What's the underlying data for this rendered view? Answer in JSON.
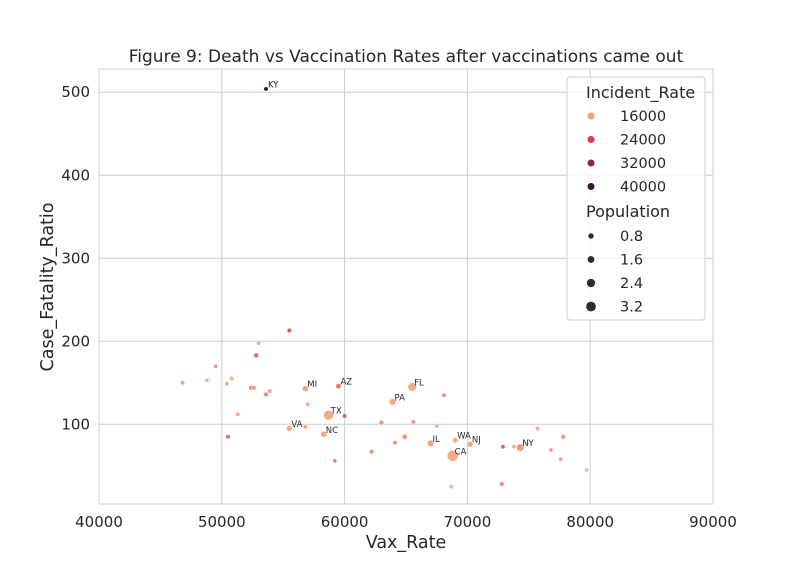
{
  "chart_data": {
    "type": "scatter",
    "title": "Figure 9: Death vs Vaccination Rates after vaccinations came out",
    "xlabel": "Vax_Rate",
    "ylabel": "Case_Fatality_Ratio",
    "xlim": [
      40000,
      90000
    ],
    "ylim": [
      4,
      528
    ],
    "xticks": [
      "40000",
      "50000",
      "60000",
      "70000",
      "80000",
      "90000"
    ],
    "yticks": [
      "100",
      "200",
      "300",
      "400",
      "500"
    ],
    "grid": true,
    "legend_position": "top-right",
    "hue": {
      "title": "Incident_Rate",
      "entries": [
        {
          "label": "16000",
          "value": 16000,
          "color": "#f3a27a"
        },
        {
          "label": "24000",
          "value": 24000,
          "color": "#d93b48"
        },
        {
          "label": "32000",
          "value": 32000,
          "color": "#8f1c5c"
        },
        {
          "label": "40000",
          "value": 40000,
          "color": "#3b0f3b"
        }
      ]
    },
    "size": {
      "title": "Population",
      "entries": [
        {
          "label": "0.8",
          "value": 0.8
        },
        {
          "label": "1.6",
          "value": 1.6
        },
        {
          "label": "2.4",
          "value": 2.4
        },
        {
          "label": "3.2",
          "value": 3.2
        }
      ]
    },
    "points": [
      {
        "x": 53600,
        "y": 504,
        "incident": 40000,
        "pop": 0.4,
        "label": "KY"
      },
      {
        "x": 55500,
        "y": 213,
        "incident": 22000,
        "pop": 0.4
      },
      {
        "x": 53000,
        "y": 198,
        "incident": 15000,
        "pop": 0.4
      },
      {
        "x": 52800,
        "y": 183,
        "incident": 20000,
        "pop": 0.7
      },
      {
        "x": 49500,
        "y": 170,
        "incident": 17000,
        "pop": 0.3
      },
      {
        "x": 46800,
        "y": 150,
        "incident": 16000,
        "pop": 0.4
      },
      {
        "x": 48800,
        "y": 153,
        "incident": 15000,
        "pop": 0.3
      },
      {
        "x": 50800,
        "y": 155,
        "incident": 14000,
        "pop": 0.4
      },
      {
        "x": 50400,
        "y": 149,
        "incident": 15000,
        "pop": 0.3
      },
      {
        "x": 52400,
        "y": 144,
        "incident": 19000,
        "pop": 0.7
      },
      {
        "x": 52600,
        "y": 144,
        "incident": 17000,
        "pop": 0.5
      },
      {
        "x": 53600,
        "y": 136,
        "incident": 18000,
        "pop": 0.5
      },
      {
        "x": 53900,
        "y": 140,
        "incident": 16000,
        "pop": 0.4
      },
      {
        "x": 51300,
        "y": 112,
        "incident": 14000,
        "pop": 0.4
      },
      {
        "x": 50500,
        "y": 85,
        "incident": 20000,
        "pop": 0.4
      },
      {
        "x": 56800,
        "y": 143,
        "incident": 16000,
        "pop": 1.1,
        "label": "MI"
      },
      {
        "x": 59500,
        "y": 146,
        "incident": 19000,
        "pop": 0.8,
        "label": "AZ"
      },
      {
        "x": 57000,
        "y": 124,
        "incident": 14000,
        "pop": 0.4
      },
      {
        "x": 65500,
        "y": 145,
        "incident": 15000,
        "pop": 2.2,
        "label": "FL"
      },
      {
        "x": 63900,
        "y": 127,
        "incident": 15000,
        "pop": 1.4,
        "label": "PA"
      },
      {
        "x": 68100,
        "y": 135,
        "incident": 17000,
        "pop": 0.4
      },
      {
        "x": 58700,
        "y": 111,
        "incident": 15000,
        "pop": 2.8,
        "label": "TX"
      },
      {
        "x": 60000,
        "y": 110,
        "incident": 21000,
        "pop": 0.4
      },
      {
        "x": 55500,
        "y": 95,
        "incident": 15000,
        "pop": 1.0,
        "label": "VA"
      },
      {
        "x": 56800,
        "y": 97,
        "incident": 16000,
        "pop": 0.4
      },
      {
        "x": 58300,
        "y": 88,
        "incident": 16000,
        "pop": 1.1,
        "label": "NC"
      },
      {
        "x": 63000,
        "y": 102,
        "incident": 17000,
        "pop": 0.6
      },
      {
        "x": 65600,
        "y": 103,
        "incident": 17000,
        "pop": 0.4
      },
      {
        "x": 67500,
        "y": 98,
        "incident": 14000,
        "pop": 0.4
      },
      {
        "x": 64900,
        "y": 85,
        "incident": 17000,
        "pop": 0.7
      },
      {
        "x": 64100,
        "y": 78,
        "incident": 17000,
        "pop": 0.4
      },
      {
        "x": 67000,
        "y": 77,
        "incident": 16000,
        "pop": 1.3,
        "label": "IL"
      },
      {
        "x": 62200,
        "y": 67,
        "incident": 17000,
        "pop": 0.6
      },
      {
        "x": 59200,
        "y": 56,
        "incident": 18000,
        "pop": 0.3
      },
      {
        "x": 69000,
        "y": 81,
        "incident": 14000,
        "pop": 1.0,
        "label": "WA"
      },
      {
        "x": 70200,
        "y": 76,
        "incident": 15000,
        "pop": 1.0,
        "label": "NJ"
      },
      {
        "x": 68800,
        "y": 62,
        "incident": 15000,
        "pop": 3.3,
        "label": "CA"
      },
      {
        "x": 72900,
        "y": 73,
        "incident": 21000,
        "pop": 0.4
      },
      {
        "x": 73800,
        "y": 73,
        "incident": 14000,
        "pop": 0.4
      },
      {
        "x": 74300,
        "y": 72,
        "incident": 17000,
        "pop": 1.7,
        "label": "NY"
      },
      {
        "x": 75700,
        "y": 95,
        "incident": 15000,
        "pop": 0.4
      },
      {
        "x": 77800,
        "y": 85,
        "incident": 17000,
        "pop": 0.6
      },
      {
        "x": 76800,
        "y": 69,
        "incident": 15000,
        "pop": 0.5
      },
      {
        "x": 77600,
        "y": 58,
        "incident": 15000,
        "pop": 0.4
      },
      {
        "x": 68700,
        "y": 25,
        "incident": 14000,
        "pop": 0.4
      },
      {
        "x": 72800,
        "y": 28,
        "incident": 18000,
        "pop": 0.5
      },
      {
        "x": 79700,
        "y": 45,
        "incident": 13000,
        "pop": 0.4
      }
    ]
  }
}
